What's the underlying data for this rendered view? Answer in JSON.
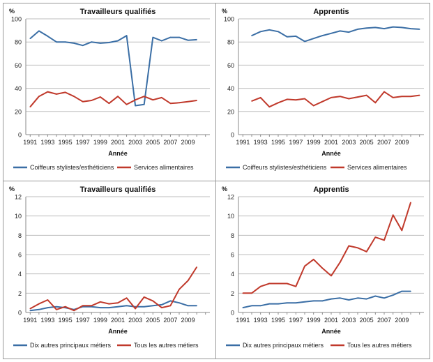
{
  "chart_data": [
    {
      "type": "line",
      "title": "Travailleurs qualifiés",
      "ylabel": "%",
      "xlabel": "Année",
      "ylim": [
        0,
        100
      ],
      "yticks": [
        0,
        20,
        40,
        60,
        80,
        100
      ],
      "xticks": [
        "1991",
        "1993",
        "1995",
        "1997",
        "1999",
        "2001",
        "2003",
        "2005",
        "2007",
        "2009"
      ],
      "x": [
        1991,
        1992,
        1993,
        1994,
        1995,
        1996,
        1997,
        1998,
        1999,
        2000,
        2001,
        2002,
        2003,
        2004,
        2005,
        2006,
        2007,
        2008,
        2009,
        2010
      ],
      "series": [
        {
          "name": "Coiffeurs stylistes/esthéticiens",
          "color": "#3a6ea5",
          "values": [
            83,
            89.5,
            85,
            80,
            80,
            79,
            77,
            80,
            79,
            79.5,
            81,
            85.5,
            25,
            26,
            84,
            81,
            84,
            84,
            81.5,
            82
          ]
        },
        {
          "name": "Services alimentaires",
          "color": "#c0392b",
          "values": [
            24,
            33,
            37,
            35,
            36.5,
            33,
            28.5,
            29.5,
            32.5,
            27,
            33,
            26,
            30,
            33,
            30,
            32,
            27,
            27.5,
            28.5,
            29.5
          ]
        }
      ]
    },
    {
      "type": "line",
      "title": "Apprentis",
      "ylabel": "%",
      "xlabel": "Année",
      "ylim": [
        0,
        100
      ],
      "yticks": [
        0,
        20,
        40,
        60,
        80,
        100
      ],
      "xticks": [
        "1991",
        "1993",
        "1995",
        "1997",
        "1999",
        "2001",
        "2003",
        "2005",
        "2007",
        "2009"
      ],
      "x": [
        1992,
        1993,
        1994,
        1995,
        1996,
        1997,
        1998,
        1999,
        2000,
        2001,
        2002,
        2003,
        2004,
        2005,
        2006,
        2007,
        2008,
        2009,
        2010,
        2011
      ],
      "series": [
        {
          "name": "Coiffeurs stylistes/esthéticiens",
          "color": "#3a6ea5",
          "values": [
            85.5,
            89,
            90.5,
            89,
            84.5,
            85,
            80.5,
            83,
            85.5,
            87.5,
            89.5,
            88.5,
            91,
            92,
            92.5,
            91.5,
            93,
            92.5,
            91.5,
            91
          ]
        },
        {
          "name": "Services alimentaires",
          "color": "#c0392b",
          "values": [
            29,
            32,
            24,
            27.5,
            30.5,
            30,
            31,
            25,
            28.5,
            32,
            33,
            31,
            32.5,
            34,
            27.5,
            37,
            32,
            33,
            33,
            34
          ]
        }
      ]
    },
    {
      "type": "line",
      "title": "Travailleurs qualifiés",
      "ylabel": "%",
      "xlabel": "Année",
      "ylim": [
        0,
        12
      ],
      "yticks": [
        0,
        2,
        4,
        6,
        8,
        10,
        12
      ],
      "xticks": [
        "1991",
        "1993",
        "1995",
        "1997",
        "1999",
        "2001",
        "2003",
        "2005",
        "2007",
        "2009"
      ],
      "x": [
        1991,
        1992,
        1993,
        1994,
        1995,
        1996,
        1997,
        1998,
        1999,
        2000,
        2001,
        2002,
        2003,
        2004,
        2005,
        2006,
        2007,
        2008,
        2009,
        2010
      ],
      "series": [
        {
          "name": "Dix autres principaux métiers",
          "color": "#3a6ea5",
          "values": [
            0.2,
            0.3,
            0.5,
            0.6,
            0.5,
            0.3,
            0.6,
            0.6,
            0.5,
            0.5,
            0.6,
            0.7,
            0.6,
            0.6,
            0.7,
            0.8,
            1.2,
            1.0,
            0.7,
            0.7
          ]
        },
        {
          "name": "Tous les autres métiers",
          "color": "#c0392b",
          "values": [
            0.4,
            0.9,
            1.3,
            0.3,
            0.6,
            0.2,
            0.7,
            0.7,
            1.1,
            0.9,
            1.0,
            1.5,
            0.4,
            1.6,
            1.2,
            0.5,
            0.7,
            2.4,
            3.3,
            4.7
          ]
        }
      ]
    },
    {
      "type": "line",
      "title": "Apprentis",
      "ylabel": "%",
      "xlabel": "Année",
      "ylim": [
        0,
        12
      ],
      "yticks": [
        0,
        2,
        4,
        6,
        8,
        10,
        12
      ],
      "xticks": [
        "1991",
        "1993",
        "1995",
        "1997",
        "1999",
        "2001",
        "2003",
        "2005",
        "2007",
        "2009"
      ],
      "x": [
        1991,
        1992,
        1993,
        1994,
        1995,
        1996,
        1997,
        1998,
        1999,
        2000,
        2001,
        2002,
        2003,
        2004,
        2005,
        2006,
        2007,
        2008,
        2009,
        2010
      ],
      "series": [
        {
          "name": "Dix autres principaux métiers",
          "color": "#3a6ea5",
          "values": [
            0.5,
            0.7,
            0.7,
            0.9,
            0.9,
            1.0,
            1.0,
            1.1,
            1.2,
            1.2,
            1.4,
            1.5,
            1.3,
            1.5,
            1.4,
            1.7,
            1.5,
            1.8,
            2.2,
            2.2
          ]
        },
        {
          "name": "Tous les autres métiers",
          "color": "#c0392b",
          "values": [
            2.0,
            2.0,
            2.7,
            3.0,
            3.0,
            3.0,
            2.7,
            4.8,
            5.5,
            4.6,
            3.8,
            5.2,
            6.9,
            6.7,
            6.3,
            7.8,
            7.5,
            10.1,
            8.5,
            11.4
          ]
        }
      ]
    }
  ]
}
